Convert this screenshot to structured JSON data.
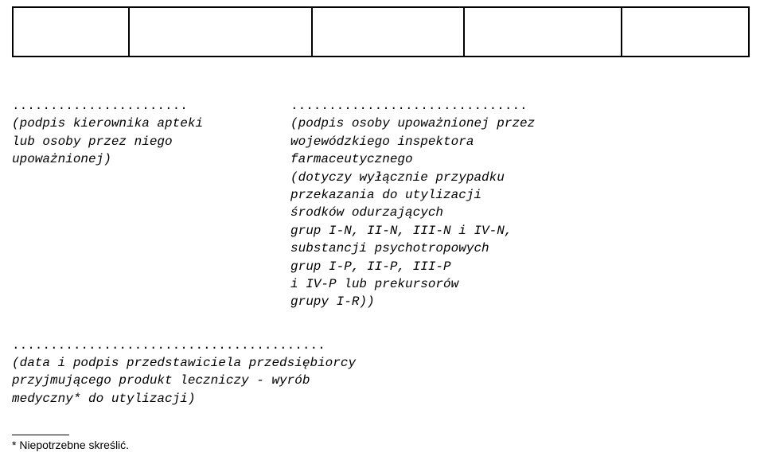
{
  "sig_left": {
    "dots": ".......................",
    "l1": "(podpis kierownika apteki",
    "l2": " lub osoby przez niego",
    "l3": "    upoważnionej)"
  },
  "sig_right": {
    "dots": "...............................",
    "l1": "(podpis osoby upoważnionej przez",
    "l2": "    wojewódzkiego inspektora",
    "l3": "       farmaceutycznego",
    "l4": "  (dotyczy wyłącznie przypadku",
    "l5": "   przekazania do utylizacji",
    "l6": "     środków odurzających",
    "l7": "grup I-N, II-N, III-N i IV-N,",
    "l8": "  substancji psychotropowych",
    "l9": "    grup I-P, II-P, III-P",
    "l10": "   i IV-P lub prekursorów",
    "l11": "        grupy I-R))"
  },
  "bottom": {
    "dots": ".........................................",
    "l1": "(data i podpis przedstawiciela przedsiębiorcy",
    "l2": "  przyjmującego produkt leczniczy - wyrób",
    "l3": "        medyczny* do utylizacji)"
  },
  "footnote": "* Niepotrzebne skreślić."
}
